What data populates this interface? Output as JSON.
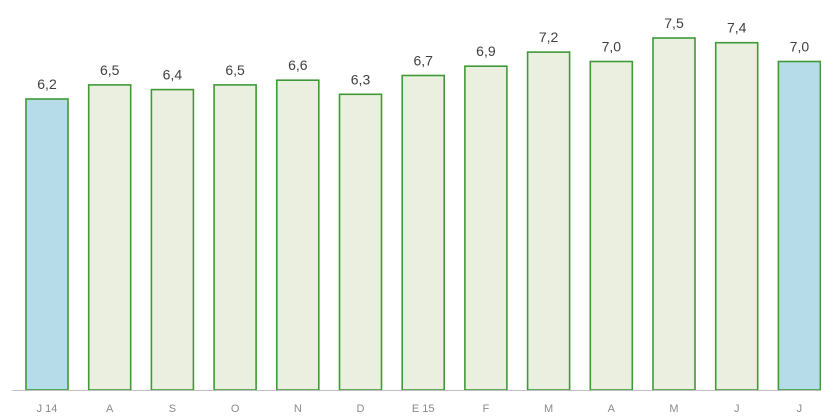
{
  "chart_data": {
    "type": "bar",
    "categories": [
      "J 14",
      "A",
      "S",
      "O",
      "N",
      "D",
      "E 15",
      "F",
      "M",
      "A",
      "M",
      "J",
      "J"
    ],
    "values": [
      6.2,
      6.5,
      6.4,
      6.5,
      6.6,
      6.3,
      6.7,
      6.9,
      7.2,
      7.0,
      7.5,
      7.4,
      7.0
    ],
    "value_labels": [
      "6,2",
      "6,5",
      "6,4",
      "6,5",
      "6,6",
      "6,3",
      "6,7",
      "6,9",
      "7,2",
      "7,0",
      "7,5",
      "7,4",
      "7,0"
    ],
    "highlighted": [
      true,
      false,
      false,
      false,
      false,
      false,
      false,
      false,
      false,
      false,
      false,
      false,
      true
    ],
    "ylim": [
      0,
      7.5
    ],
    "grid": false,
    "colors": {
      "bar_fill": "#ebefdf",
      "bar_stroke": "#3f9a36",
      "highlight_fill": "#b5dce8",
      "highlight_stroke": "#3f9a36",
      "axis": "#bfbfbf",
      "value_text": "#404040",
      "tick_text": "#8a8a8a"
    }
  }
}
